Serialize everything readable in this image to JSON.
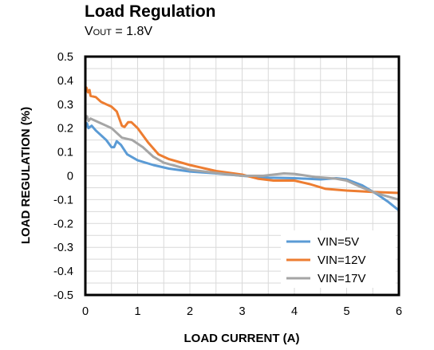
{
  "chart_data": {
    "type": "line",
    "title": "Load Regulation",
    "subtitle": {
      "main": "V",
      "subscript": "OUT",
      "rest": " = 1.8V"
    },
    "xlabel": "LOAD CURRENT  (A)",
    "ylabel": "LOAD REGULATION  (%)",
    "xlim": [
      0,
      6
    ],
    "ylim": [
      -0.5,
      0.5
    ],
    "x_ticks": [
      "0",
      "1",
      "2",
      "3",
      "4",
      "5",
      "6"
    ],
    "y_ticks": [
      "0.5",
      "0.4",
      "0.3",
      "0.2",
      "0.1",
      "0",
      "-0.1",
      "-0.2",
      "-0.3",
      "-0.4",
      "-0.5"
    ],
    "grid": true,
    "legend_position": "bottom-right",
    "series": [
      {
        "name": "VIN=5V",
        "color": "#5B9BD5",
        "points": [
          [
            0,
            0.2
          ],
          [
            0.03,
            0.22
          ],
          [
            0.06,
            0.2
          ],
          [
            0.12,
            0.21
          ],
          [
            0.2,
            0.19
          ],
          [
            0.3,
            0.17
          ],
          [
            0.4,
            0.15
          ],
          [
            0.5,
            0.12
          ],
          [
            0.55,
            0.12
          ],
          [
            0.6,
            0.145
          ],
          [
            0.68,
            0.13
          ],
          [
            0.8,
            0.09
          ],
          [
            1.0,
            0.065
          ],
          [
            1.3,
            0.045
          ],
          [
            1.6,
            0.03
          ],
          [
            2.0,
            0.018
          ],
          [
            2.5,
            0.01
          ],
          [
            3.0,
            0.0
          ],
          [
            3.5,
            -0.008
          ],
          [
            4.0,
            -0.01
          ],
          [
            4.5,
            -0.015
          ],
          [
            4.8,
            -0.01
          ],
          [
            5.0,
            -0.015
          ],
          [
            5.3,
            -0.04
          ],
          [
            5.6,
            -0.08
          ],
          [
            5.8,
            -0.11
          ],
          [
            6.0,
            -0.145
          ]
        ]
      },
      {
        "name": "VIN=12V",
        "color": "#ED7D31",
        "points": [
          [
            0,
            0.36
          ],
          [
            0.02,
            0.37
          ],
          [
            0.05,
            0.35
          ],
          [
            0.08,
            0.36
          ],
          [
            0.1,
            0.335
          ],
          [
            0.2,
            0.33
          ],
          [
            0.3,
            0.31
          ],
          [
            0.4,
            0.3
          ],
          [
            0.5,
            0.29
          ],
          [
            0.6,
            0.27
          ],
          [
            0.7,
            0.21
          ],
          [
            0.75,
            0.205
          ],
          [
            0.82,
            0.225
          ],
          [
            0.88,
            0.225
          ],
          [
            1.0,
            0.2
          ],
          [
            1.2,
            0.14
          ],
          [
            1.4,
            0.09
          ],
          [
            1.6,
            0.07
          ],
          [
            2.0,
            0.045
          ],
          [
            2.5,
            0.02
          ],
          [
            3.0,
            0.005
          ],
          [
            3.3,
            -0.012
          ],
          [
            3.6,
            -0.02
          ],
          [
            4.0,
            -0.02
          ],
          [
            4.3,
            -0.035
          ],
          [
            4.6,
            -0.055
          ],
          [
            5.0,
            -0.062
          ],
          [
            5.5,
            -0.068
          ],
          [
            6.0,
            -0.072
          ]
        ]
      },
      {
        "name": "VIN=17V",
        "color": "#A5A5A5",
        "points": [
          [
            0,
            0.24
          ],
          [
            0.03,
            0.25
          ],
          [
            0.06,
            0.23
          ],
          [
            0.1,
            0.24
          ],
          [
            0.2,
            0.23
          ],
          [
            0.3,
            0.22
          ],
          [
            0.4,
            0.21
          ],
          [
            0.5,
            0.2
          ],
          [
            0.6,
            0.18
          ],
          [
            0.7,
            0.16
          ],
          [
            0.9,
            0.15
          ],
          [
            1.1,
            0.12
          ],
          [
            1.3,
            0.08
          ],
          [
            1.5,
            0.055
          ],
          [
            2.0,
            0.025
          ],
          [
            2.5,
            0.012
          ],
          [
            3.0,
            0.0
          ],
          [
            3.4,
            0.0
          ],
          [
            3.8,
            0.01
          ],
          [
            4.0,
            0.008
          ],
          [
            4.4,
            -0.005
          ],
          [
            4.8,
            -0.012
          ],
          [
            5.0,
            -0.02
          ],
          [
            5.3,
            -0.05
          ],
          [
            5.6,
            -0.075
          ],
          [
            6.0,
            -0.1
          ]
        ]
      }
    ]
  }
}
